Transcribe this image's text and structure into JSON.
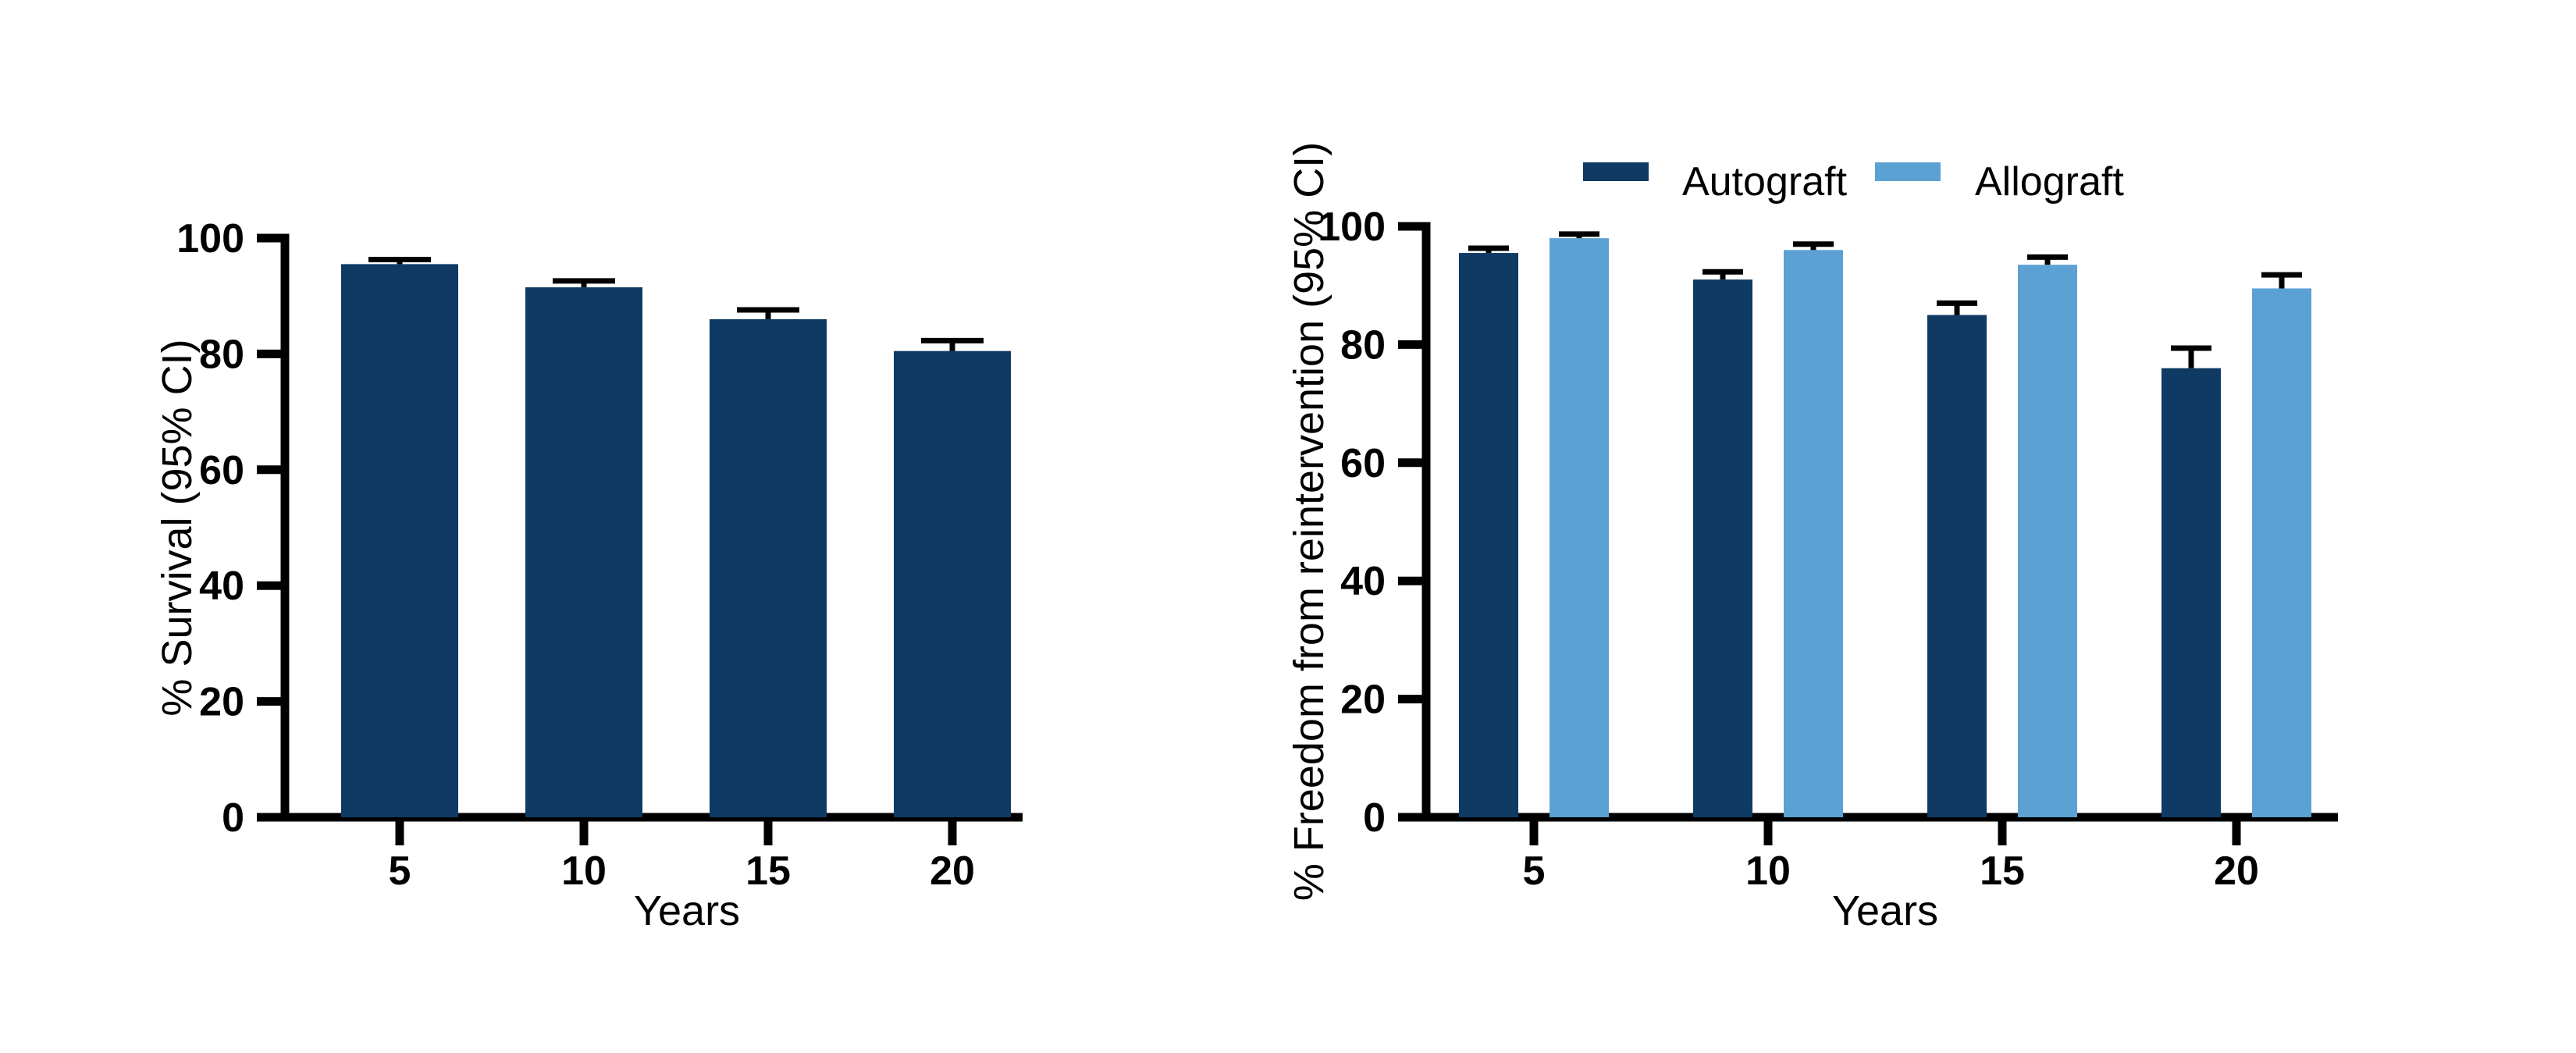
{
  "figure": {
    "background_color": "#ffffff",
    "axis_color": "#000000",
    "error_bar_color": "#000000"
  },
  "chart_data": [
    {
      "type": "bar",
      "title": "",
      "categories": [
        "5",
        "10",
        "15",
        "20"
      ],
      "xlabel": "Years",
      "ylabel": "% Survival (95% CI)",
      "ylim": [
        0,
        100
      ],
      "yticks": [
        0,
        20,
        40,
        60,
        80,
        100
      ],
      "grid": "off",
      "legend": "none",
      "series": [
        {
          "name": "Survival",
          "color": "#0E3A64",
          "values": [
            95.5,
            91.5,
            86.0,
            80.5
          ],
          "error_upper": [
            0.8,
            1.1,
            1.6,
            1.8
          ]
        }
      ]
    },
    {
      "type": "bar",
      "title": "",
      "categories": [
        "5",
        "10",
        "15",
        "20"
      ],
      "xlabel": "Years",
      "ylabel": "% Freedom from reintervention (95% CI)",
      "ylim": [
        0,
        100
      ],
      "yticks": [
        0,
        20,
        40,
        60,
        80,
        100
      ],
      "grid": "off",
      "legend": "top",
      "series": [
        {
          "name": "Autograft",
          "color": "#0E3A64",
          "values": [
            95.5,
            91.0,
            85.0,
            76.0
          ],
          "error_upper": [
            0.8,
            1.3,
            2.0,
            3.4
          ]
        },
        {
          "name": "Allograft",
          "color": "#5CA1D3",
          "values": [
            98.0,
            96.0,
            93.5,
            89.5
          ],
          "error_upper": [
            0.7,
            1.0,
            1.3,
            2.3
          ]
        }
      ]
    }
  ]
}
